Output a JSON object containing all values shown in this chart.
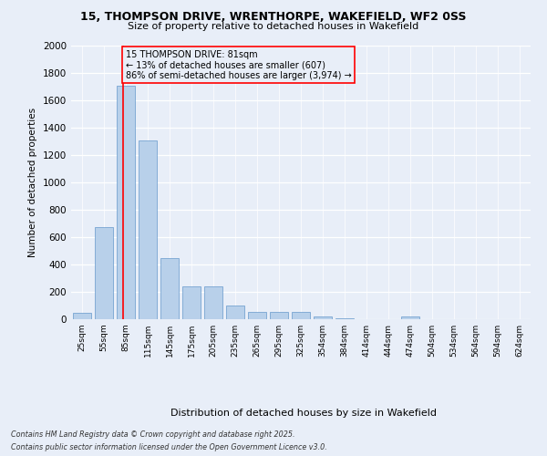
{
  "title_line1": "15, THOMPSON DRIVE, WRENTHORPE, WAKEFIELD, WF2 0SS",
  "title_line2": "Size of property relative to detached houses in Wakefield",
  "xlabel": "Distribution of detached houses by size in Wakefield",
  "ylabel": "Number of detached properties",
  "categories": [
    "25sqm",
    "55sqm",
    "85sqm",
    "115sqm",
    "145sqm",
    "175sqm",
    "205sqm",
    "235sqm",
    "265sqm",
    "295sqm",
    "325sqm",
    "354sqm",
    "384sqm",
    "414sqm",
    "444sqm",
    "474sqm",
    "504sqm",
    "534sqm",
    "564sqm",
    "594sqm",
    "624sqm"
  ],
  "values": [
    50,
    675,
    1710,
    1310,
    450,
    240,
    240,
    100,
    55,
    55,
    55,
    18,
    4,
    3,
    2,
    18,
    0,
    0,
    0,
    0,
    0
  ],
  "bar_color": "#b8d0ea",
  "bar_edge_color": "#6699cc",
  "property_label": "15 THOMPSON DRIVE: 81sqm",
  "line1": "← 13% of detached houses are smaller (607)",
  "line2": "86% of semi-detached houses are larger (3,974) →",
  "vline_color": "red",
  "ylim": [
    0,
    2000
  ],
  "yticks": [
    0,
    200,
    400,
    600,
    800,
    1000,
    1200,
    1400,
    1600,
    1800,
    2000
  ],
  "footer_line1": "Contains HM Land Registry data © Crown copyright and database right 2025.",
  "footer_line2": "Contains public sector information licensed under the Open Government Licence v3.0.",
  "background_color": "#e8eef8",
  "plot_bg_color": "#e8eef8",
  "vline_x_idx": 1.867
}
